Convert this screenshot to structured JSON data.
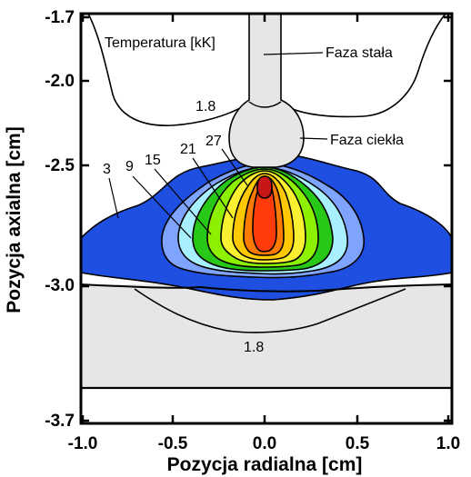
{
  "chart_data": {
    "type": "contour",
    "xlabel": "Pozycja radialna [cm]",
    "ylabel": "Pozycja axialna  [cm]",
    "xlim": [
      -1.0,
      1.0
    ],
    "ylim": [
      -3.7,
      -1.7
    ],
    "x_ticks": [
      -1.0,
      -0.5,
      0.0,
      0.5,
      1.0
    ],
    "x_tick_labels": [
      "-1.0",
      "-0.5",
      "0.0",
      "0.5",
      "1.0"
    ],
    "y_ticks": [
      -1.7,
      -2.0,
      -2.5,
      -3.0,
      -3.7
    ],
    "y_tick_labels": [
      "-1.7",
      "-2.0",
      "-2.5",
      "-3.0",
      "-3.7"
    ],
    "annotations": {
      "temperature_label": "Temperatura [kK]",
      "solid_label": "Faza stała",
      "liquid_label": "Faza ciekła",
      "contour_top": "1.8",
      "contour_bottom": "1.8",
      "level_3": "3",
      "level_9": "9",
      "level_15": "15",
      "level_21": "21",
      "level_27": "27"
    },
    "contour_levels": [
      3,
      6,
      9,
      12,
      15,
      18,
      21,
      24,
      27,
      30
    ],
    "level_colors": [
      "#1f4fe0",
      "#7fa4ff",
      "#a8f0ff",
      "#28c818",
      "#8cf000",
      "#f8f030",
      "#ffc800",
      "#ff7a00",
      "#ff3c0a",
      "#c81616"
    ],
    "phase_fill_color": "#e6e6e6"
  }
}
